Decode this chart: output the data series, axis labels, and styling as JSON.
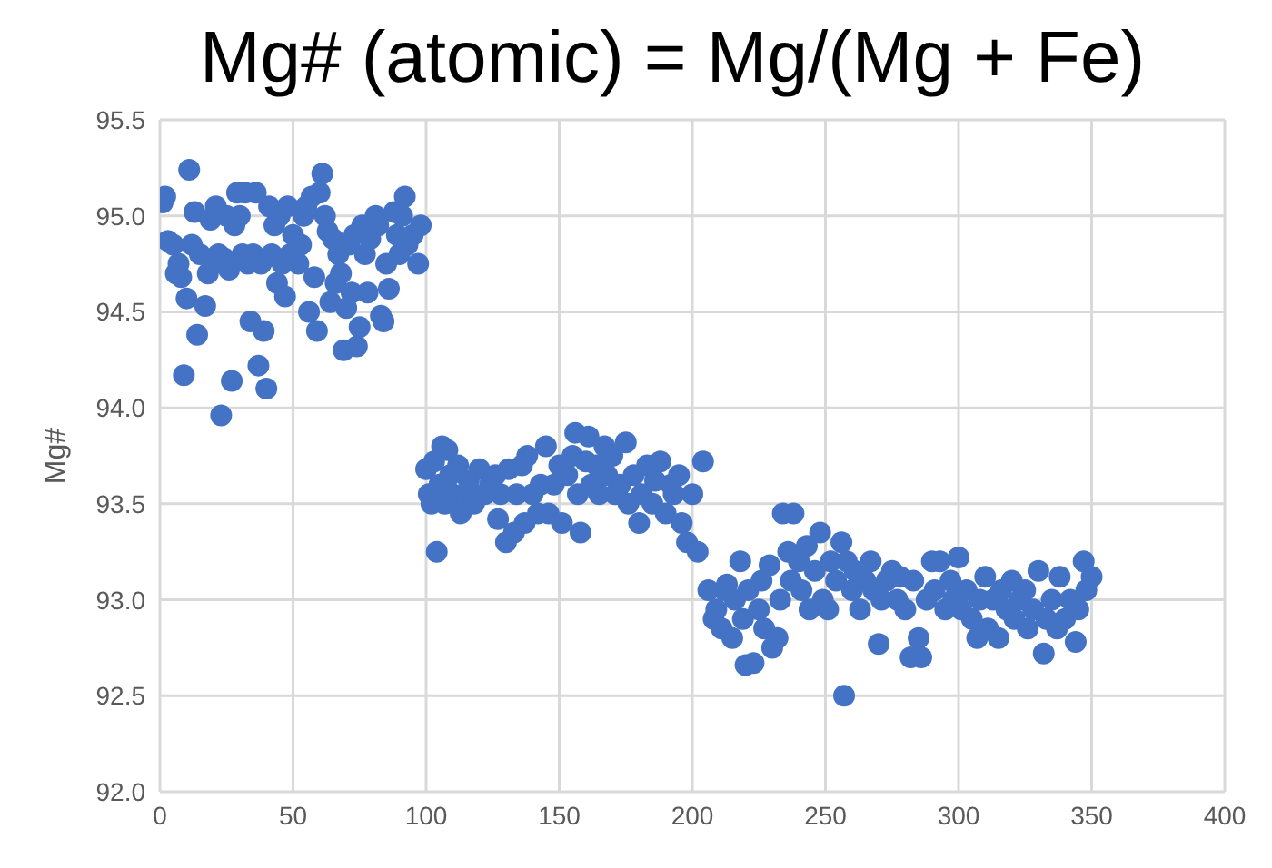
{
  "chart_data": {
    "type": "scatter",
    "title": "Mg# (atomic) = Mg/(Mg + Fe)",
    "ylabel": "Mg#",
    "xlim": [
      0,
      400
    ],
    "xticks": [
      0,
      50,
      100,
      150,
      200,
      250,
      300,
      350,
      400
    ],
    "ylim": [
      92,
      95.5
    ],
    "yticks": [
      {
        "value": 92,
        "label": "92.0"
      },
      {
        "value": 92.5,
        "label": "92.5"
      },
      {
        "value": 93,
        "label": "93.0"
      },
      {
        "value": 93.5,
        "label": "93.5"
      },
      {
        "value": 94,
        "label": "94.0"
      },
      {
        "value": 94.5,
        "label": "94.5"
      },
      {
        "value": 95,
        "label": "95.0"
      },
      {
        "value": 95.5,
        "label": "95.5"
      }
    ],
    "grid": true,
    "marker": "circle",
    "legend": false,
    "series": [
      {
        "color": "#4472c4",
        "x": [
          1,
          2,
          3,
          5,
          6,
          7,
          8,
          9,
          10,
          11,
          12,
          13,
          14,
          15,
          17,
          18,
          19,
          20,
          21,
          22,
          23,
          24,
          25,
          26,
          27,
          28,
          29,
          30,
          31,
          32,
          33,
          34,
          35,
          36,
          37,
          38,
          39,
          40,
          41,
          42,
          43,
          44,
          45,
          46,
          47,
          48,
          49,
          50,
          52,
          53,
          54,
          55,
          56,
          57,
          58,
          59,
          60,
          61,
          62,
          63,
          64,
          65,
          66,
          67,
          68,
          69,
          70,
          71,
          72,
          73,
          74,
          75,
          76,
          77,
          78,
          79,
          81,
          82,
          83,
          84,
          85,
          86,
          88,
          89,
          90,
          91,
          92,
          93,
          95,
          97,
          98,
          100,
          101,
          102,
          103,
          104,
          105,
          106,
          107,
          108,
          109,
          110,
          112,
          113,
          115,
          116,
          118,
          120,
          122,
          124,
          126,
          127,
          128,
          130,
          131,
          133,
          134,
          136,
          137,
          138,
          140,
          142,
          143,
          145,
          146,
          148,
          150,
          151,
          153,
          155,
          156,
          157,
          158,
          160,
          161,
          162,
          164,
          165,
          167,
          168,
          170,
          171,
          173,
          175,
          176,
          178,
          180,
          181,
          183,
          185,
          186,
          188,
          190,
          192,
          193,
          195,
          196,
          198,
          200,
          202,
          204,
          206,
          208,
          209,
          211,
          212,
          213,
          215,
          216,
          218,
          219,
          220,
          221,
          223,
          225,
          226,
          227,
          229,
          230,
          232,
          233,
          234,
          236,
          237,
          238,
          240,
          241,
          243,
          244,
          246,
          248,
          249,
          251,
          252,
          254,
          256,
          257,
          258,
          260,
          261,
          263,
          265,
          267,
          268,
          270,
          271,
          273,
          275,
          277,
          278,
          280,
          282,
          283,
          285,
          286,
          288,
          290,
          291,
          293,
          295,
          297,
          298,
          300,
          301,
          303,
          305,
          307,
          308,
          310,
          311,
          313,
          315,
          316,
          318,
          320,
          321,
          323,
          325,
          326,
          328,
          330,
          332,
          333,
          335,
          337,
          338,
          340,
          342,
          344,
          345,
          347,
          348,
          350
        ],
        "values": [
          95.07,
          95.1,
          94.87,
          94.85,
          94.7,
          94.75,
          94.68,
          94.17,
          94.57,
          95.24,
          94.85,
          95.02,
          94.38,
          94.8,
          94.53,
          94.7,
          94.98,
          94.75,
          95.05,
          94.8,
          93.96,
          94.78,
          95,
          94.72,
          94.14,
          94.95,
          95.12,
          95,
          94.8,
          95.12,
          94.75,
          94.45,
          94.8,
          95.12,
          94.22,
          94.75,
          94.4,
          94.1,
          95.05,
          94.8,
          94.95,
          94.65,
          95,
          94.75,
          94.58,
          95.05,
          94.8,
          94.9,
          94.75,
          94.85,
          95,
          95.05,
          94.5,
          95.1,
          94.68,
          94.4,
          95.12,
          95.22,
          95,
          94.92,
          94.55,
          94.88,
          94.65,
          94.8,
          94.7,
          94.3,
          94.52,
          94.85,
          94.6,
          94.9,
          94.32,
          94.42,
          94.95,
          94.8,
          94.6,
          94.88,
          95,
          94.95,
          94.48,
          94.45,
          94.75,
          94.62,
          95.02,
          94.9,
          94.8,
          95,
          95.1,
          94.85,
          94.9,
          94.75,
          94.95,
          93.68,
          93.55,
          93.5,
          93.72,
          93.25,
          93.6,
          93.8,
          93.5,
          93.78,
          93.65,
          93.55,
          93.7,
          93.45,
          93.55,
          93.62,
          93.5,
          93.68,
          93.55,
          93.6,
          93.65,
          93.42,
          93.55,
          93.3,
          93.68,
          93.35,
          93.55,
          93.7,
          93.4,
          93.75,
          93.55,
          93.45,
          93.6,
          93.8,
          93.45,
          93.6,
          93.7,
          93.4,
          93.65,
          93.75,
          93.87,
          93.55,
          93.35,
          93.72,
          93.85,
          93.6,
          93.7,
          93.55,
          93.8,
          93.65,
          93.75,
          93.55,
          93.6,
          93.82,
          93.5,
          93.65,
          93.4,
          93.55,
          93.7,
          93.5,
          93.62,
          93.72,
          93.45,
          93.6,
          93.55,
          93.65,
          93.4,
          93.3,
          93.55,
          93.25,
          93.72,
          93.05,
          92.9,
          92.95,
          92.85,
          93.05,
          93.08,
          92.8,
          93,
          93.2,
          92.9,
          92.66,
          93.05,
          92.67,
          92.95,
          93.1,
          92.85,
          93.18,
          92.75,
          92.8,
          93,
          93.45,
          93.25,
          93.1,
          93.45,
          93.2,
          93.05,
          93.28,
          92.95,
          93.15,
          93.35,
          93,
          92.95,
          93.2,
          93.1,
          93.3,
          92.5,
          93.2,
          93.05,
          93.15,
          92.95,
          93.1,
          93.2,
          93.05,
          92.77,
          93,
          93.1,
          93.15,
          93,
          93.12,
          92.95,
          92.7,
          93.1,
          92.8,
          92.7,
          93,
          93.2,
          93.05,
          93.2,
          92.95,
          93.1,
          93,
          93.22,
          92.95,
          93.05,
          92.9,
          92.8,
          93,
          93.12,
          92.85,
          93,
          92.8,
          93.05,
          92.95,
          93.1,
          92.9,
          93,
          93.05,
          92.85,
          92.95,
          93.15,
          92.72,
          92.9,
          93,
          92.85,
          93.12,
          92.9,
          93,
          92.78,
          92.95,
          93.2,
          93.05,
          93.12
        ]
      }
    ]
  }
}
